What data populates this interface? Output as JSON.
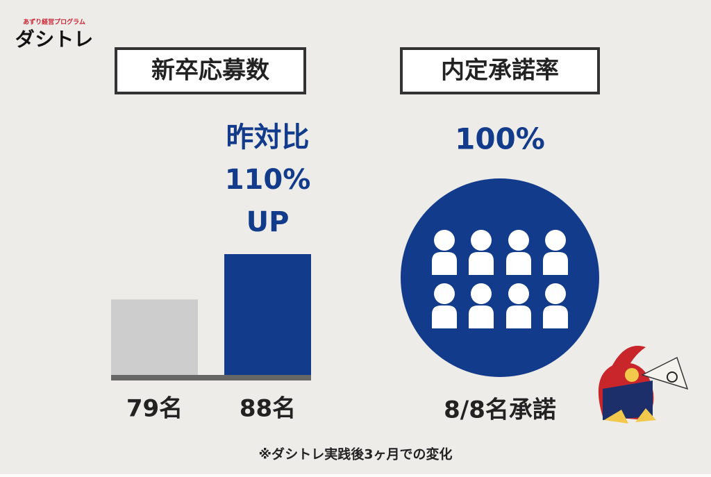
{
  "logo": {
    "tagline": "あずり経営プログラム",
    "name": "ダシトレ"
  },
  "chart_data": {
    "type": "bar",
    "title": "新卒応募数",
    "values": [
      79,
      88
    ],
    "value_labels": [
      "79名",
      "88名"
    ],
    "colors": [
      "#cdcdcd",
      "#123b8b"
    ],
    "ylim": [
      64,
      88
    ],
    "annotations": [
      "昨対比",
      "110%",
      "UP"
    ]
  },
  "acceptance": {
    "title": "内定承諾率",
    "rate": "100%",
    "label": "8/8名承諾"
  },
  "footnote": "※ダシトレ実践後3ヶ月での変化"
}
